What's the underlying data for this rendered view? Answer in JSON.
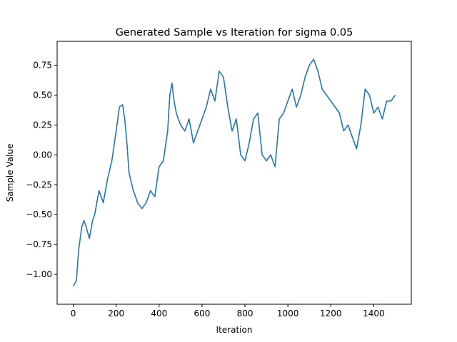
{
  "chart_data": {
    "type": "line",
    "title": "Generated Sample vs Iteration for sigma 0.05",
    "xlabel": "Iteration",
    "ylabel": "Sample Value",
    "xlim": [
      -75,
      1575
    ],
    "ylim": [
      -1.25,
      0.95
    ],
    "xticks": [
      0,
      200,
      400,
      600,
      800,
      1000,
      1200,
      1400
    ],
    "yticks": [
      -1.0,
      -0.75,
      -0.5,
      -0.25,
      0.0,
      0.25,
      0.5,
      0.75
    ],
    "xtick_labels": [
      "0",
      "200",
      "400",
      "600",
      "800",
      "1000",
      "1200",
      "1400"
    ],
    "ytick_labels": [
      "−1.00",
      "−0.75",
      "−0.50",
      "−0.25",
      "0.00",
      "0.25",
      "0.50",
      "0.75"
    ],
    "grid": false,
    "series": [
      {
        "color": "#1f77b4",
        "x": [
          0,
          15,
          25,
          40,
          50,
          60,
          75,
          90,
          100,
          120,
          140,
          160,
          180,
          200,
          215,
          230,
          240,
          250,
          260,
          280,
          300,
          320,
          340,
          360,
          380,
          400,
          420,
          440,
          450,
          460,
          470,
          480,
          500,
          520,
          540,
          560,
          580,
          600,
          620,
          640,
          660,
          680,
          700,
          720,
          740,
          760,
          780,
          800,
          820,
          840,
          860,
          880,
          900,
          920,
          940,
          960,
          980,
          1000,
          1020,
          1040,
          1060,
          1080,
          1100,
          1120,
          1140,
          1160,
          1180,
          1200,
          1220,
          1240,
          1260,
          1280,
          1300,
          1320,
          1340,
          1360,
          1380,
          1400,
          1420,
          1440,
          1460,
          1480,
          1500
        ],
        "y": [
          -1.1,
          -1.05,
          -0.8,
          -0.6,
          -0.55,
          -0.6,
          -0.7,
          -0.55,
          -0.5,
          -0.3,
          -0.4,
          -0.2,
          -0.05,
          0.2,
          0.4,
          0.42,
          0.3,
          0.1,
          -0.15,
          -0.3,
          -0.4,
          -0.45,
          -0.4,
          -0.3,
          -0.35,
          -0.1,
          -0.05,
          0.2,
          0.5,
          0.6,
          0.45,
          0.35,
          0.25,
          0.2,
          0.3,
          0.1,
          0.2,
          0.3,
          0.4,
          0.55,
          0.45,
          0.7,
          0.65,
          0.4,
          0.2,
          0.3,
          0.0,
          -0.05,
          0.1,
          0.3,
          0.35,
          0.0,
          -0.05,
          0.0,
          -0.1,
          0.3,
          0.35,
          0.45,
          0.55,
          0.4,
          0.5,
          0.65,
          0.75,
          0.8,
          0.7,
          0.55,
          0.5,
          0.45,
          0.4,
          0.35,
          0.2,
          0.25,
          0.15,
          0.05,
          0.25,
          0.55,
          0.5,
          0.35,
          0.4,
          0.3,
          0.45,
          0.45,
          0.5
        ]
      }
    ]
  }
}
